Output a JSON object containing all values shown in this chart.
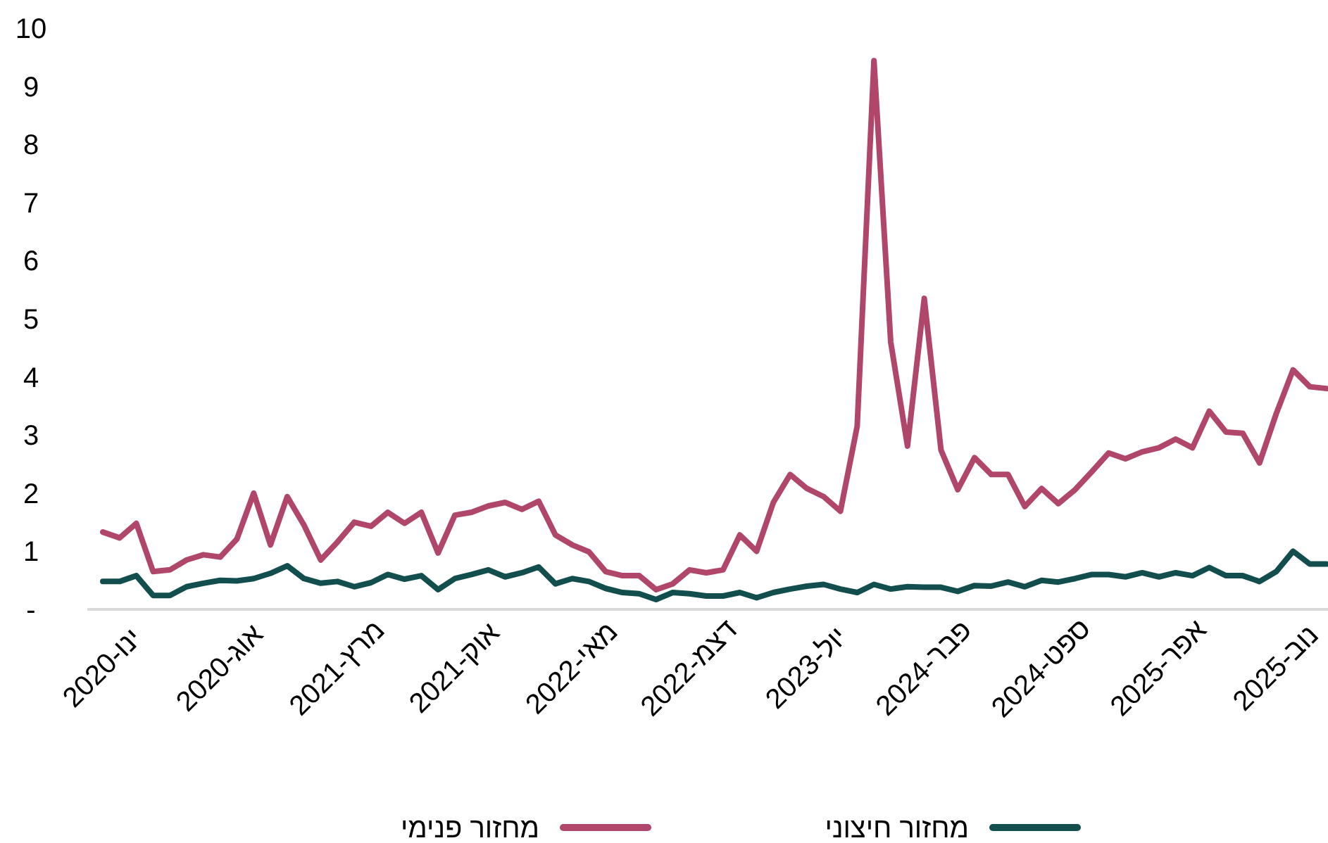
{
  "chart_data": {
    "type": "line",
    "categories": [
      "ינו-2020",
      null,
      null,
      null,
      null,
      null,
      null,
      "אוג-2020",
      null,
      null,
      null,
      null,
      null,
      null,
      "מרץ-2021",
      null,
      null,
      null,
      null,
      null,
      null,
      "אוק-2021",
      null,
      null,
      null,
      null,
      null,
      null,
      "מאי-2022",
      null,
      null,
      null,
      null,
      null,
      null,
      "דצמ-2022",
      null,
      null,
      null,
      null,
      null,
      null,
      "יול-2023",
      null,
      null,
      null,
      null,
      null,
      null,
      "פבר-2024",
      null,
      null,
      null,
      null,
      null,
      null,
      "ספט-2024",
      null,
      null,
      null,
      null,
      null,
      null,
      "אפר-2025",
      null,
      null,
      null,
      null,
      null,
      null,
      "נוב-2025",
      null,
      null,
      null
    ],
    "series": [
      {
        "name": "מחזור חיצוני",
        "color": "#134e4f",
        "values": [
          0.48,
          0.48,
          0.58,
          0.24,
          0.24,
          0.39,
          0.45,
          0.5,
          0.49,
          0.53,
          0.62,
          0.75,
          0.53,
          0.45,
          0.48,
          0.39,
          0.46,
          0.6,
          0.52,
          0.58,
          0.34,
          0.53,
          0.6,
          0.68,
          0.56,
          0.63,
          0.73,
          0.44,
          0.53,
          0.48,
          0.36,
          0.29,
          0.27,
          0.17,
          0.29,
          0.27,
          0.23,
          0.23,
          0.29,
          0.2,
          0.29,
          0.35,
          0.4,
          0.43,
          0.35,
          0.29,
          0.43,
          0.35,
          0.39,
          0.38,
          0.38,
          0.31,
          0.41,
          0.4,
          0.47,
          0.39,
          0.5,
          0.47,
          0.53,
          0.6,
          0.6,
          0.56,
          0.63,
          0.56,
          0.63,
          0.58,
          0.72,
          0.58,
          0.58,
          0.48,
          0.65,
          1.0,
          0.78,
          0.78
        ]
      },
      {
        "name": "מחזור פנימי",
        "color": "#b0466a",
        "values": [
          1.33,
          1.23,
          1.48,
          0.65,
          0.68,
          0.85,
          0.94,
          0.9,
          1.21,
          2.0,
          1.11,
          1.94,
          1.45,
          0.85,
          1.16,
          1.5,
          1.43,
          1.67,
          1.48,
          1.67,
          0.97,
          1.62,
          1.67,
          1.78,
          1.84,
          1.72,
          1.86,
          1.28,
          1.11,
          0.99,
          0.65,
          0.58,
          0.58,
          0.34,
          0.44,
          0.68,
          0.63,
          0.68,
          1.28,
          1.0,
          1.84,
          2.32,
          2.08,
          1.94,
          1.69,
          3.15,
          9.44,
          4.6,
          2.81,
          5.35,
          2.74,
          2.06,
          2.61,
          2.32,
          2.32,
          1.77,
          2.08,
          1.82,
          2.06,
          2.37,
          2.69,
          2.59,
          2.71,
          2.78,
          2.93,
          2.78,
          3.41,
          3.05,
          3.03,
          2.52,
          3.37,
          4.12,
          3.83,
          3.8
        ]
      }
    ],
    "ylim": [
      0,
      10
    ],
    "yticks": [
      {
        "value": 0,
        "label": "-"
      },
      1,
      2,
      3,
      4,
      5,
      6,
      7,
      8,
      9,
      10
    ],
    "legend": "bottom"
  }
}
